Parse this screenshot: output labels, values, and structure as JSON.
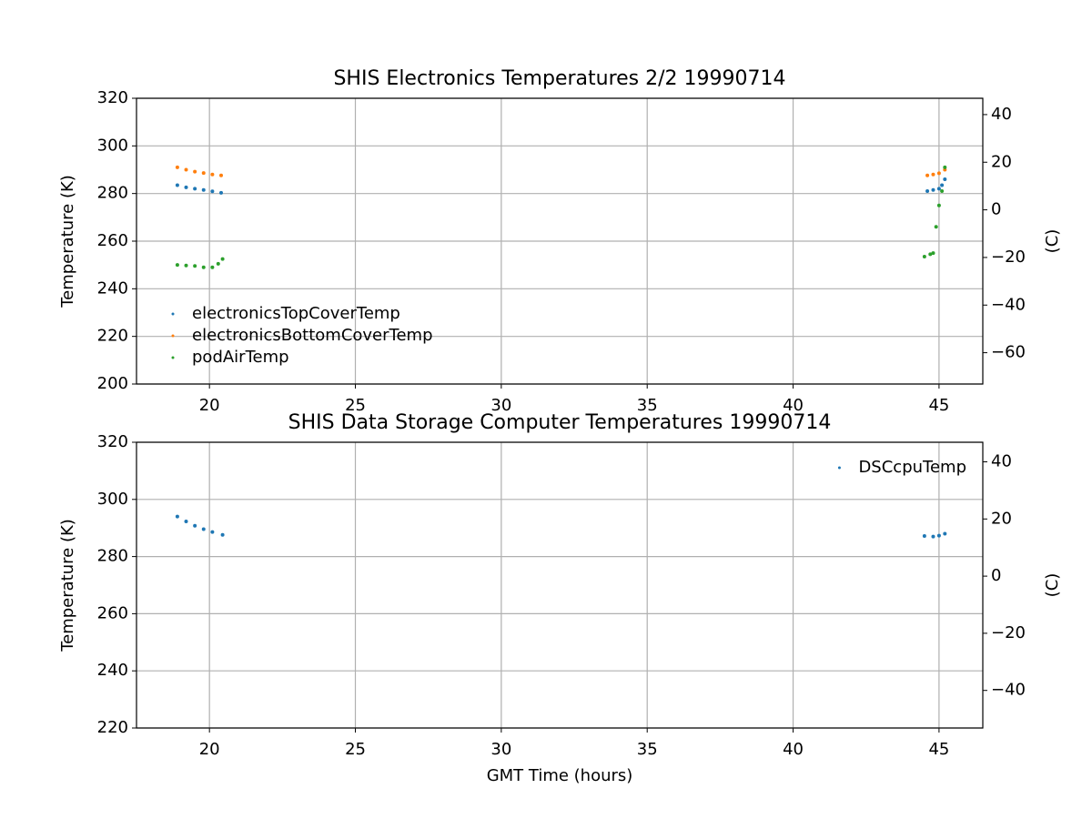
{
  "chart_data": [
    {
      "type": "scatter",
      "title": "SHIS Electronics Temperatures 2/2 19990714",
      "ylabel": "Temperature (K)",
      "y2label": "(C)",
      "xlim": [
        17.5,
        46.5
      ],
      "xticks": [
        20,
        25,
        30,
        35,
        40,
        45
      ],
      "ylim": [
        200,
        320
      ],
      "yticks": [
        200,
        220,
        240,
        260,
        280,
        300,
        320
      ],
      "y2lim": [
        -73.15,
        46.85
      ],
      "y2ticks": [
        -60,
        -40,
        -20,
        0,
        20,
        40
      ],
      "grid": true,
      "legend": "lower left",
      "series": [
        {
          "name": "electronicsTopCoverTemp",
          "color": "#1f77b4",
          "x": [
            18.9,
            19.2,
            19.5,
            19.8,
            20.1,
            20.4,
            44.6,
            44.8,
            45.0,
            45.1,
            45.2
          ],
          "values": [
            283.5,
            282.6,
            282.0,
            281.5,
            280.9,
            280.3,
            281.0,
            281.5,
            282.0,
            283.5,
            286.0
          ]
        },
        {
          "name": "electronicsBottomCoverTemp",
          "color": "#ff7f0e",
          "x": [
            18.9,
            19.2,
            19.5,
            19.8,
            20.1,
            20.4,
            44.6,
            44.8,
            45.0,
            45.2
          ],
          "values": [
            291.0,
            290.0,
            289.2,
            288.6,
            288.0,
            287.6,
            287.6,
            288.0,
            288.5,
            290.0
          ]
        },
        {
          "name": "podAirTemp",
          "color": "#2ca02c",
          "x": [
            18.9,
            19.2,
            19.5,
            19.8,
            20.1,
            20.3,
            20.45,
            44.5,
            44.7,
            44.8,
            44.9,
            45.0,
            45.1,
            45.2
          ],
          "values": [
            250.0,
            249.8,
            249.6,
            249.0,
            249.0,
            250.5,
            252.5,
            253.5,
            254.5,
            255.0,
            266.0,
            275.0,
            281.0,
            291.0
          ]
        }
      ]
    },
    {
      "type": "scatter",
      "title": "SHIS Data Storage Computer Temperatures 19990714",
      "ylabel": "Temperature (K)",
      "y2label": "(C)",
      "xlabel": "GMT Time (hours)",
      "xlim": [
        17.5,
        46.5
      ],
      "xticks": [
        20,
        25,
        30,
        35,
        40,
        45
      ],
      "ylim": [
        220,
        320
      ],
      "yticks": [
        220,
        240,
        260,
        280,
        300,
        320
      ],
      "y2lim": [
        -53.15,
        46.85
      ],
      "y2ticks": [
        -40,
        -20,
        0,
        20,
        40
      ],
      "grid": true,
      "legend": "upper right",
      "series": [
        {
          "name": "DSCcpuTemp",
          "color": "#1f77b4",
          "x": [
            18.9,
            19.2,
            19.5,
            19.8,
            20.1,
            20.45,
            44.5,
            44.8,
            45.0,
            45.2
          ],
          "values": [
            294.0,
            292.3,
            290.8,
            289.6,
            288.6,
            287.6,
            287.2,
            287.0,
            287.3,
            288.0
          ]
        }
      ]
    }
  ]
}
